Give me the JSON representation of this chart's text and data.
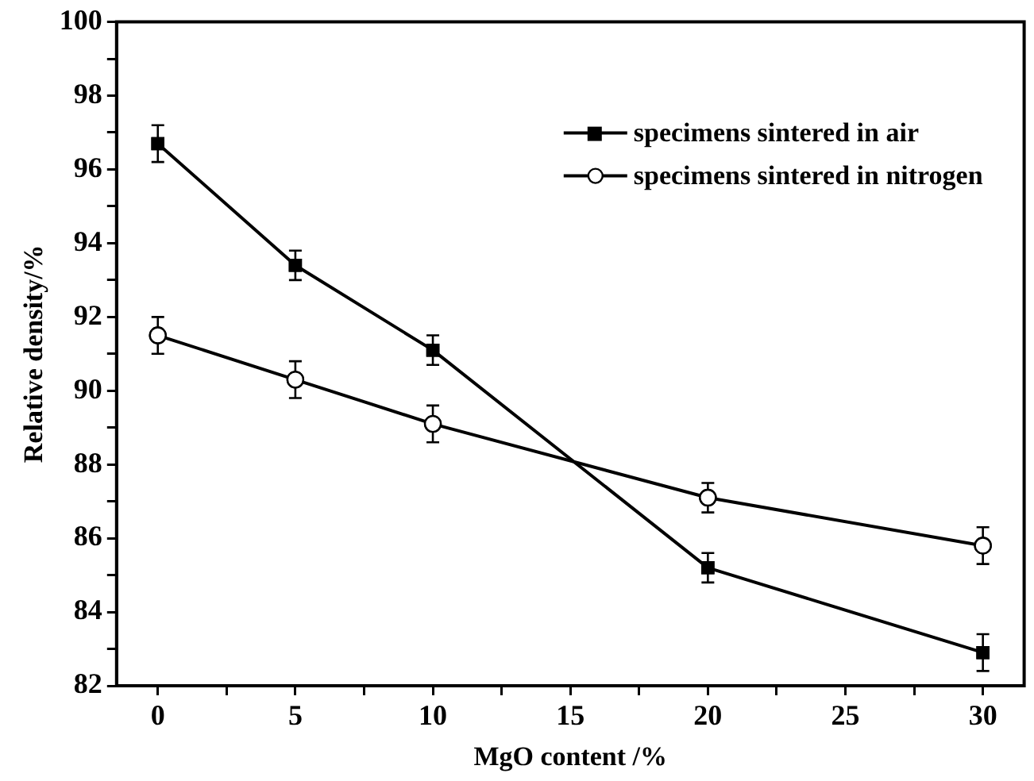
{
  "chart_data": {
    "type": "line",
    "xlabel": "MgO content /%",
    "ylabel": "Relative density/%",
    "x": [
      0,
      5,
      10,
      20,
      30
    ],
    "xlim": [
      -1.5,
      31.5
    ],
    "xticks": [
      0,
      {
        "value": 2.5,
        "label": null
      },
      5,
      {
        "value": 7.5,
        "label": null
      },
      10,
      {
        "value": 12.5,
        "label": null
      },
      15,
      {
        "value": 17.5,
        "label": null
      },
      20,
      {
        "value": 22.5,
        "label": null
      },
      25,
      {
        "value": 27.5,
        "label": null
      },
      30
    ],
    "ylim": [
      82,
      100
    ],
    "yticks": [
      82,
      {
        "value": 83,
        "label": null
      },
      84,
      {
        "value": 85,
        "label": null
      },
      86,
      {
        "value": 87,
        "label": null
      },
      88,
      {
        "value": 89,
        "label": null
      },
      90,
      {
        "value": 91,
        "label": null
      },
      92,
      {
        "value": 93,
        "label": null
      },
      94,
      {
        "value": 95,
        "label": null
      },
      96,
      {
        "value": 97,
        "label": null
      },
      98,
      {
        "value": 99,
        "label": null
      },
      100
    ],
    "grid": false,
    "legend": "top right",
    "line_style": "solid",
    "series": [
      {
        "name": "specimens sintered in air",
        "color": "#000000",
        "marker": "square",
        "values": [
          96.7,
          93.4,
          91.1,
          85.2,
          82.9
        ],
        "errors": [
          0.5,
          0.4,
          0.4,
          0.4,
          0.5
        ]
      },
      {
        "name": "specimens sintered in nitrogen",
        "color": "#000000",
        "marker": "circle",
        "values": [
          91.5,
          90.3,
          89.1,
          87.1,
          85.8
        ],
        "errors": [
          0.5,
          0.5,
          0.5,
          0.4,
          0.5
        ]
      }
    ]
  }
}
